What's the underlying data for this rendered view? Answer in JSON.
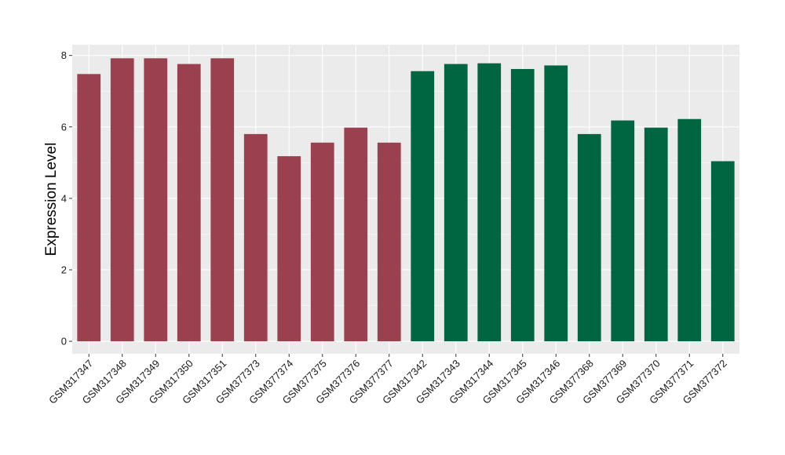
{
  "chart_data": {
    "type": "bar",
    "ylabel": "Expression Level",
    "xlabel": "",
    "ylim": [
      -0.35,
      8.3
    ],
    "yticks": [
      0,
      2,
      4,
      6,
      8
    ],
    "grid": true,
    "colors": {
      "panel_background": "#ebebeb",
      "grid": "#ffffff",
      "group_a": "#9b404e",
      "group_b": "#006641"
    },
    "categories": [
      "GSM317347",
      "GSM317348",
      "GSM317349",
      "GSM317350",
      "GSM317351",
      "GSM377373",
      "GSM377374",
      "GSM377375",
      "GSM377376",
      "GSM377377",
      "GSM317342",
      "GSM317343",
      "GSM317344",
      "GSM317345",
      "GSM317346",
      "GSM377368",
      "GSM377369",
      "GSM377370",
      "GSM377371",
      "GSM377372"
    ],
    "values": [
      7.48,
      7.92,
      7.92,
      7.76,
      7.92,
      5.8,
      5.18,
      5.56,
      5.98,
      5.56,
      7.56,
      7.76,
      7.78,
      7.62,
      7.72,
      5.8,
      6.18,
      5.98,
      6.22,
      5.04
    ],
    "bar_colors": [
      "#9b404e",
      "#9b404e",
      "#9b404e",
      "#9b404e",
      "#9b404e",
      "#9b404e",
      "#9b404e",
      "#9b404e",
      "#9b404e",
      "#9b404e",
      "#006641",
      "#006641",
      "#006641",
      "#006641",
      "#006641",
      "#006641",
      "#006641",
      "#006641",
      "#006641",
      "#006641"
    ]
  }
}
